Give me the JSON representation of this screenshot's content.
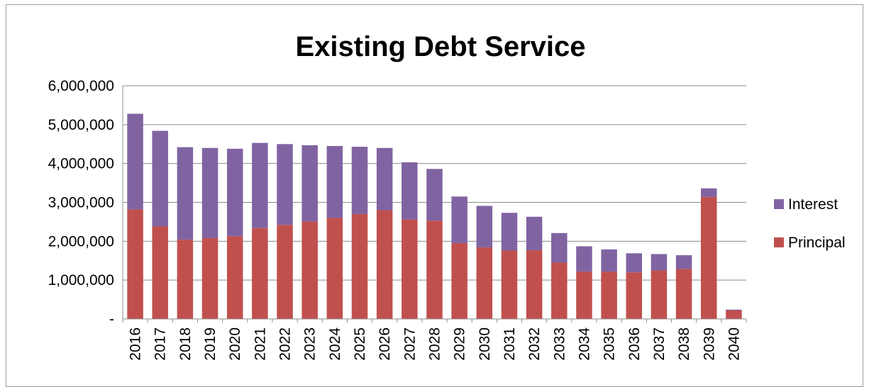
{
  "chart_data": {
    "type": "bar",
    "stacked": true,
    "title": "Existing Debt Service",
    "xlabel": "",
    "ylabel": "",
    "ylim": [
      0,
      6000000
    ],
    "yticks": [
      0,
      1000000,
      2000000,
      3000000,
      4000000,
      5000000,
      6000000
    ],
    "ytick_labels": [
      "-",
      "1,000,000",
      "2,000,000",
      "3,000,000",
      "4,000,000",
      "5,000,000",
      "6,000,000"
    ],
    "grid": true,
    "legend_position": "right",
    "categories": [
      "2016",
      "2017",
      "2018",
      "2019",
      "2020",
      "2021",
      "2022",
      "2023",
      "2024",
      "2025",
      "2026",
      "2027",
      "2028",
      "2029",
      "2030",
      "2031",
      "2032",
      "2033",
      "2034",
      "2035",
      "2036",
      "2037",
      "2038",
      "2039",
      "2040"
    ],
    "series": [
      {
        "name": "Principal",
        "color": "#C0504D",
        "values": [
          2820000,
          2380000,
          2040000,
          2080000,
          2130000,
          2340000,
          2420000,
          2510000,
          2600000,
          2700000,
          2800000,
          2560000,
          2530000,
          1950000,
          1840000,
          1760000,
          1770000,
          1450000,
          1220000,
          1220000,
          1200000,
          1250000,
          1290000,
          3140000,
          220000
        ]
      },
      {
        "name": "Interest",
        "color": "#8064A2",
        "values": [
          2460000,
          2460000,
          2380000,
          2320000,
          2250000,
          2190000,
          2080000,
          1960000,
          1850000,
          1730000,
          1600000,
          1470000,
          1330000,
          1200000,
          1070000,
          970000,
          860000,
          760000,
          650000,
          570000,
          490000,
          420000,
          350000,
          220000,
          20000
        ]
      }
    ],
    "legend_order": [
      "Interest",
      "Principal"
    ]
  }
}
